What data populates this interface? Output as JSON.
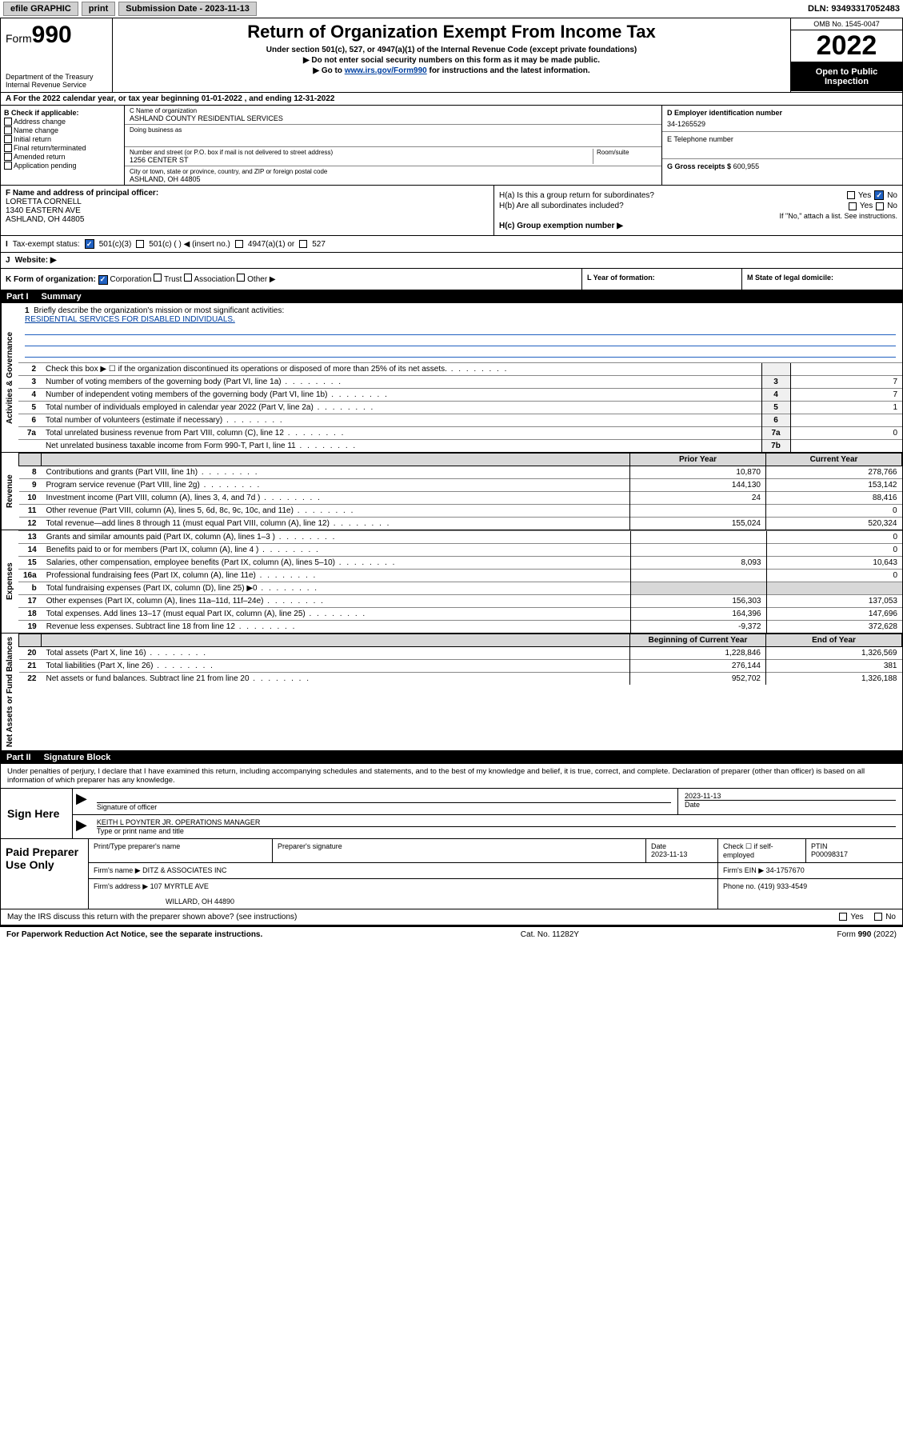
{
  "topbar": {
    "efile": "efile GRAPHIC",
    "print": "print",
    "submission": "Submission Date - 2023-11-13",
    "dln": "DLN: 93493317052483"
  },
  "header": {
    "form_label": "Form",
    "form_num": "990",
    "dept": "Department of the Treasury",
    "irs": "Internal Revenue Service",
    "title": "Return of Organization Exempt From Income Tax",
    "sub1": "Under section 501(c), 527, or 4947(a)(1) of the Internal Revenue Code (except private foundations)",
    "sub2": "▶ Do not enter social security numbers on this form as it may be made public.",
    "sub3_pre": "▶ Go to ",
    "sub3_link": "www.irs.gov/Form990",
    "sub3_post": " for instructions and the latest information.",
    "omb": "OMB No. 1545-0047",
    "year": "2022",
    "open": "Open to Public Inspection"
  },
  "row_a": "For the 2022 calendar year, or tax year beginning 01-01-2022   , and ending 12-31-2022",
  "b": {
    "hdr": "B Check if applicable:",
    "items": [
      "Address change",
      "Name change",
      "Initial return",
      "Final return/terminated",
      "Amended return",
      "Application pending"
    ]
  },
  "c": {
    "name_lbl": "C Name of organization",
    "name": "ASHLAND COUNTY RESIDENTIAL SERVICES",
    "dba_lbl": "Doing business as",
    "dba": "",
    "addr_lbl": "Number and street (or P.O. box if mail is not delivered to street address)",
    "room_lbl": "Room/suite",
    "addr": "1256 CENTER ST",
    "city_lbl": "City or town, state or province, country, and ZIP or foreign postal code",
    "city": "ASHLAND, OH  44805"
  },
  "d": {
    "ein_lbl": "D Employer identification number",
    "ein": "34-1265529",
    "phone_lbl": "E Telephone number",
    "phone": "",
    "gross_lbl": "G Gross receipts $",
    "gross": "600,955"
  },
  "f": {
    "lbl": "F  Name and address of principal officer:",
    "name": "LORETTA CORNELL",
    "addr1": "1340 EASTERN AVE",
    "addr2": "ASHLAND, OH  44805"
  },
  "h": {
    "a_lbl": "H(a)  Is this a group return for subordinates?",
    "b_lbl": "H(b)  Are all subordinates included?",
    "note": "If \"No,\" attach a list. See instructions.",
    "c_lbl": "H(c)  Group exemption number ▶",
    "yes": "Yes",
    "no": "No"
  },
  "i": {
    "lbl": "Tax-exempt status:",
    "o1": "501(c)(3)",
    "o2": "501(c) (  ) ◀ (insert no.)",
    "o3": "4947(a)(1) or",
    "o4": "527"
  },
  "j": {
    "lbl": "Website: ▶"
  },
  "k": {
    "lbl": "K Form of organization:",
    "o1": "Corporation",
    "o2": "Trust",
    "o3": "Association",
    "o4": "Other ▶"
  },
  "l": {
    "lbl": "L Year of formation:"
  },
  "m": {
    "lbl": "M State of legal domicile:"
  },
  "part1": {
    "pt": "Part I",
    "ttl": "Summary"
  },
  "vlabels": {
    "gov": "Activities & Governance",
    "rev": "Revenue",
    "exp": "Expenses",
    "net": "Net Assets or Fund Balances"
  },
  "mission": {
    "num": "1",
    "lbl": "Briefly describe the organization's mission or most significant activities:",
    "txt": "RESIDENTIAL SERVICES FOR DISABLED INDIVIDUALS."
  },
  "gov_lines": [
    {
      "n": "2",
      "d": "Check this box ▶ ☐  if the organization discontinued its operations or disposed of more than 25% of its net assets.",
      "box": "",
      "v": ""
    },
    {
      "n": "3",
      "d": "Number of voting members of the governing body (Part VI, line 1a)",
      "box": "3",
      "v": "7"
    },
    {
      "n": "4",
      "d": "Number of independent voting members of the governing body (Part VI, line 1b)",
      "box": "4",
      "v": "7"
    },
    {
      "n": "5",
      "d": "Total number of individuals employed in calendar year 2022 (Part V, line 2a)",
      "box": "5",
      "v": "1"
    },
    {
      "n": "6",
      "d": "Total number of volunteers (estimate if necessary)",
      "box": "6",
      "v": ""
    },
    {
      "n": "7a",
      "d": "Total unrelated business revenue from Part VIII, column (C), line 12",
      "box": "7a",
      "v": "0"
    },
    {
      "n": "",
      "d": "Net unrelated business taxable income from Form 990-T, Part I, line 11",
      "box": "7b",
      "v": ""
    }
  ],
  "two_col_hdr": {
    "prior": "Prior Year",
    "current": "Current Year",
    "boy": "Beginning of Current Year",
    "eoy": "End of Year"
  },
  "rev_lines": [
    {
      "n": "8",
      "d": "Contributions and grants (Part VIII, line 1h)",
      "v1": "10,870",
      "v2": "278,766"
    },
    {
      "n": "9",
      "d": "Program service revenue (Part VIII, line 2g)",
      "v1": "144,130",
      "v2": "153,142"
    },
    {
      "n": "10",
      "d": "Investment income (Part VIII, column (A), lines 3, 4, and 7d )",
      "v1": "24",
      "v2": "88,416"
    },
    {
      "n": "11",
      "d": "Other revenue (Part VIII, column (A), lines 5, 6d, 8c, 9c, 10c, and 11e)",
      "v1": "",
      "v2": "0"
    },
    {
      "n": "12",
      "d": "Total revenue—add lines 8 through 11 (must equal Part VIII, column (A), line 12)",
      "v1": "155,024",
      "v2": "520,324"
    }
  ],
  "exp_lines": [
    {
      "n": "13",
      "d": "Grants and similar amounts paid (Part IX, column (A), lines 1–3 )",
      "v1": "",
      "v2": "0"
    },
    {
      "n": "14",
      "d": "Benefits paid to or for members (Part IX, column (A), line 4 )",
      "v1": "",
      "v2": "0"
    },
    {
      "n": "15",
      "d": "Salaries, other compensation, employee benefits (Part IX, column (A), lines 5–10)",
      "v1": "8,093",
      "v2": "10,643"
    },
    {
      "n": "16a",
      "d": "Professional fundraising fees (Part IX, column (A), line 11e)",
      "v1": "",
      "v2": "0"
    },
    {
      "n": "b",
      "d": "Total fundraising expenses (Part IX, column (D), line 25) ▶0",
      "v1": "",
      "v2": "",
      "grey": true
    },
    {
      "n": "17",
      "d": "Other expenses (Part IX, column (A), lines 11a–11d, 11f–24e)",
      "v1": "156,303",
      "v2": "137,053"
    },
    {
      "n": "18",
      "d": "Total expenses. Add lines 13–17 (must equal Part IX, column (A), line 25)",
      "v1": "164,396",
      "v2": "147,696"
    },
    {
      "n": "19",
      "d": "Revenue less expenses. Subtract line 18 from line 12",
      "v1": "-9,372",
      "v2": "372,628"
    }
  ],
  "net_lines": [
    {
      "n": "20",
      "d": "Total assets (Part X, line 16)",
      "v1": "1,228,846",
      "v2": "1,326,569"
    },
    {
      "n": "21",
      "d": "Total liabilities (Part X, line 26)",
      "v1": "276,144",
      "v2": "381"
    },
    {
      "n": "22",
      "d": "Net assets or fund balances. Subtract line 21 from line 20",
      "v1": "952,702",
      "v2": "1,326,188"
    }
  ],
  "part2": {
    "pt": "Part II",
    "ttl": "Signature Block"
  },
  "sig": {
    "note": "Under penalties of perjury, I declare that I have examined this return, including accompanying schedules and statements, and to the best of my knowledge and belief, it is true, correct, and complete. Declaration of preparer (other than officer) is based on all information of which preparer has any knowledge.",
    "here": "Sign Here",
    "sig_lbl": "Signature of officer",
    "date_lbl": "Date",
    "date": "2023-11-13",
    "name": "KEITH L POYNTER JR. OPERATIONS MANAGER",
    "name_lbl": "Type or print name and title"
  },
  "paid": {
    "hdr": "Paid Preparer Use Only",
    "c1": "Print/Type preparer's name",
    "c2": "Preparer's signature",
    "c3": "Date",
    "c3v": "2023-11-13",
    "c4": "Check ☐ if self-employed",
    "c5": "PTIN",
    "c5v": "P00098317",
    "firm_lbl": "Firm's name    ▶",
    "firm": "DITZ & ASSOCIATES INC",
    "ein_lbl": "Firm's EIN ▶",
    "ein": "34-1757670",
    "addr_lbl": "Firm's address ▶",
    "addr1": "107 MYRTLE AVE",
    "addr2": "WILLARD, OH  44890",
    "phone_lbl": "Phone no.",
    "phone": "(419) 933-4549"
  },
  "may_irs": "May the IRS discuss this return with the preparer shown above? (see instructions)",
  "footer": {
    "left": "For Paperwork Reduction Act Notice, see the separate instructions.",
    "mid": "Cat. No. 11282Y",
    "right_a": "Form ",
    "right_b": "990",
    "right_c": " (2022)"
  }
}
